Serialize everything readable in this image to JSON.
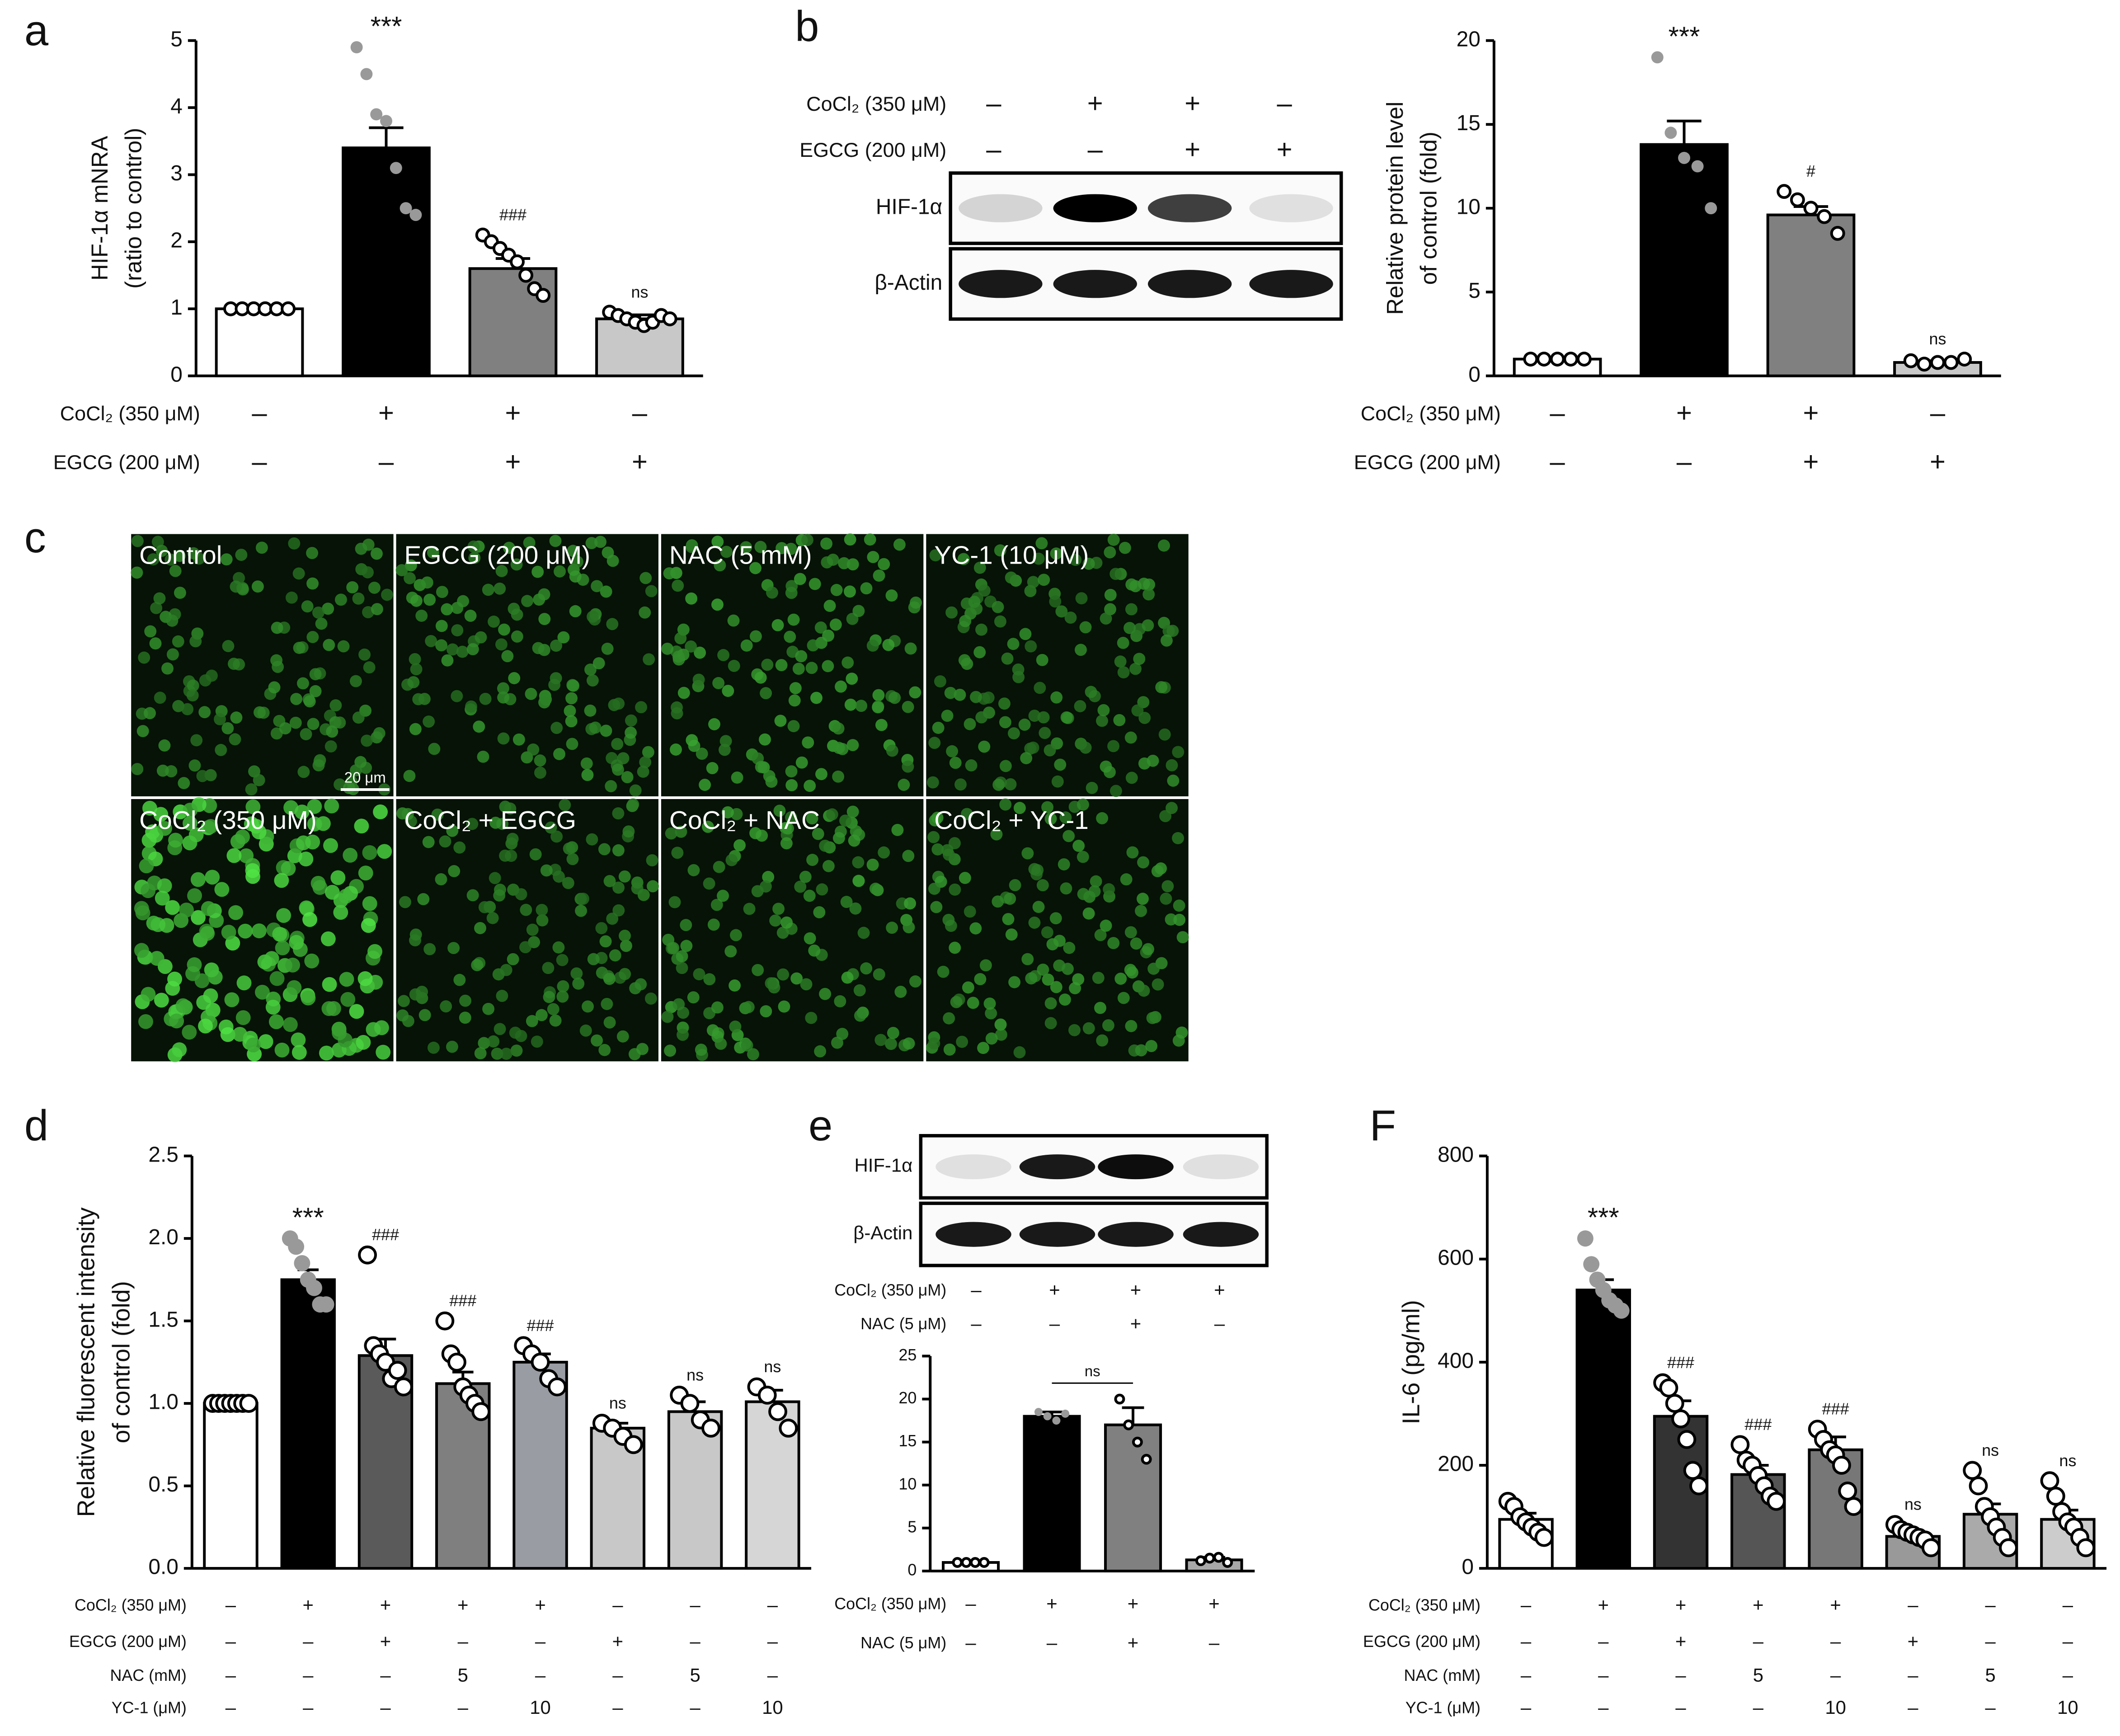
{
  "chart_data": [
    {
      "type": "bar",
      "ylabel": [
        "HIF-1α mNRA",
        "(ratio to control)"
      ],
      "ylim": [
        0,
        5
      ],
      "yticks": [
        0,
        1,
        2,
        3,
        4,
        5
      ],
      "values": [
        1.0,
        3.4,
        1.6,
        0.85
      ],
      "errors": [
        0,
        0.3,
        0.15,
        0.06
      ],
      "colors": [
        "#ffffff",
        "#000000",
        "#808080",
        "#c8c8c8"
      ],
      "point_fills": [
        "none",
        "#999999",
        "none",
        "none"
      ],
      "points": [
        [
          1,
          1,
          1,
          1,
          1,
          1
        ],
        [
          4.9,
          4.5,
          3.9,
          3.8,
          3.1,
          2.5,
          2.4
        ],
        [
          2.1,
          2.0,
          1.9,
          1.8,
          1.7,
          1.5,
          1.3,
          1.2
        ],
        [
          0.95,
          0.9,
          0.85,
          0.8,
          0.75,
          0.8,
          0.9,
          0.85
        ]
      ],
      "annotations": [
        null,
        "***",
        "###",
        "ns"
      ],
      "treatments": [
        {
          "label": "CoCl₂ (350 μM)",
          "values": [
            "–",
            "+",
            "+",
            "–"
          ]
        },
        {
          "label": "EGCG (200 μM)",
          "values": [
            "–",
            "–",
            "+",
            "+"
          ]
        }
      ]
    },
    {
      "type": "bar",
      "ylabel": [
        "Relative protein level",
        "of control (fold)"
      ],
      "ylim": [
        0,
        20
      ],
      "yticks": [
        0,
        5,
        10,
        15,
        20
      ],
      "values": [
        1,
        13.8,
        9.6,
        0.8
      ],
      "errors": [
        0.1,
        1.4,
        0.5,
        0.1
      ],
      "colors": [
        "#ffffff",
        "#000000",
        "#808080",
        "#c8c8c8"
      ],
      "point_fills": [
        "none",
        "#999999",
        "none",
        "none"
      ],
      "points": [
        [
          1,
          1,
          1,
          1,
          1
        ],
        [
          19,
          14.5,
          13,
          12.5,
          10
        ],
        [
          11,
          10.5,
          10,
          9.5,
          8.5
        ],
        [
          0.9,
          0.7,
          0.8,
          0.8,
          1.0
        ]
      ],
      "annotations": [
        null,
        "***",
        "#",
        "ns"
      ],
      "treatments": [
        {
          "label": "CoCl₂ (350 μM)",
          "values": [
            "–",
            "+",
            "+",
            "–"
          ]
        },
        {
          "label": "EGCG (200 μM)",
          "values": [
            "–",
            "–",
            "+",
            "+"
          ]
        }
      ]
    },
    {
      "type": "bar",
      "ylabel": [
        "Relative fluorescent  intensity",
        "of control (fold)"
      ],
      "ylim": [
        0,
        2.5
      ],
      "yticks": [
        {
          "value": 0,
          "label": "0.0"
        },
        0.5,
        {
          "value": 1,
          "label": "1.0"
        },
        1.5,
        {
          "value": 2,
          "label": "2.0"
        },
        2.5
      ],
      "values": [
        1.0,
        1.75,
        1.29,
        1.12,
        1.25,
        0.85,
        0.95,
        1.01
      ],
      "errors": [
        0.01,
        0.06,
        0.1,
        0.07,
        0.05,
        0.03,
        0.06,
        0.07
      ],
      "colors": [
        "#ffffff",
        "#000000",
        "#5a5a5a",
        "#7f7f7f",
        "#9a9ca3",
        "#c8c8c8",
        "#c8c8c8",
        "#d6d6d6"
      ],
      "point_fills": [
        "none",
        "#999999",
        "none",
        "none",
        "none",
        "none",
        "none",
        "none"
      ],
      "points": [
        [
          1,
          1,
          1,
          1,
          1,
          1,
          1
        ],
        [
          2.0,
          1.95,
          1.85,
          1.75,
          1.7,
          1.6,
          1.6
        ],
        [
          1.9,
          1.35,
          1.3,
          1.25,
          1.15,
          1.2,
          1.1
        ],
        [
          1.5,
          1.3,
          1.25,
          1.1,
          1.05,
          1.0,
          0.95
        ],
        [
          1.35,
          1.3,
          1.25,
          1.15,
          1.1
        ],
        [
          0.88,
          0.85,
          0.8,
          0.75
        ],
        [
          1.05,
          1.0,
          0.9,
          0.85
        ],
        [
          1.1,
          1.05,
          0.95,
          0.85
        ]
      ],
      "annotations": [
        null,
        "***",
        "###",
        "###",
        "###",
        "ns",
        "ns",
        "ns"
      ],
      "treatments": [
        {
          "label": "CoCl₂ (350 μM)",
          "values": [
            "–",
            "+",
            "+",
            "+",
            "+",
            "–",
            "–",
            "–"
          ]
        },
        {
          "label": "EGCG (200 μM)",
          "values": [
            "–",
            "–",
            "+",
            "–",
            "–",
            "+",
            "–",
            "–"
          ]
        },
        {
          "label": "NAC (mM)",
          "values": [
            "–",
            "–",
            "–",
            "5",
            "–",
            "–",
            "5",
            "–"
          ]
        },
        {
          "label": "YC-1 (μM)",
          "values": [
            "–",
            "–",
            "–",
            "–",
            "10",
            "–",
            "–",
            "10"
          ]
        }
      ]
    },
    {
      "type": "bar",
      "ylim": [
        0,
        25
      ],
      "yticks": [
        0,
        5,
        10,
        15,
        20,
        25
      ],
      "values": [
        1,
        18,
        17,
        1.3
      ],
      "errors": [
        0,
        0.5,
        2,
        0.3
      ],
      "colors": [
        "#ffffff",
        "#000000",
        "#808080",
        "#a8a8a8"
      ],
      "point_fills": [
        "none",
        "#999999",
        "none",
        "none"
      ],
      "points": [
        [
          1,
          1,
          1,
          1
        ],
        [
          18.5,
          18,
          17.5,
          18.3
        ],
        [
          20,
          17,
          15,
          13
        ],
        [
          1.2,
          1.5,
          1.6,
          1.0
        ]
      ],
      "annotations": [
        null,
        null,
        null,
        null
      ],
      "comparison_label": "ns",
      "treatments": [
        {
          "label": "CoCl₂ (350 μM)",
          "values": [
            "–",
            "+",
            "+",
            "+"
          ]
        },
        {
          "label": "NAC (5 μM)",
          "values": [
            "–",
            "–",
            "+",
            "–"
          ]
        }
      ]
    },
    {
      "type": "bar",
      "ylabel": [
        "IL-6 (pg/ml)"
      ],
      "ylim": [
        0,
        800
      ],
      "yticks": [
        0,
        200,
        400,
        600,
        800
      ],
      "values": [
        95,
        540,
        295,
        182,
        230,
        62,
        105,
        95
      ],
      "errors": [
        12,
        20,
        30,
        18,
        25,
        8,
        20,
        18
      ],
      "colors": [
        "#ffffff",
        "#000000",
        "#333333",
        "#555555",
        "#777777",
        "#999999",
        "#aaaaaa",
        "#cccccc"
      ],
      "point_fills": [
        "none",
        "#999999",
        "none",
        "none",
        "none",
        "none",
        "none",
        "none"
      ],
      "points": [
        [
          130,
          120,
          100,
          90,
          80,
          70,
          60
        ],
        [
          640,
          590,
          560,
          540,
          520,
          510,
          500
        ],
        [
          360,
          350,
          320,
          290,
          250,
          190,
          160
        ],
        [
          240,
          210,
          200,
          180,
          160,
          140,
          130
        ],
        [
          270,
          250,
          230,
          220,
          200,
          150,
          120
        ],
        [
          85,
          75,
          70,
          65,
          60,
          55,
          40
        ],
        [
          190,
          160,
          120,
          100,
          80,
          60,
          40
        ],
        [
          170,
          140,
          110,
          90,
          80,
          60,
          40
        ]
      ],
      "annotations": [
        null,
        "***",
        "###",
        "###",
        "###",
        "ns",
        "ns",
        "ns"
      ],
      "treatments": [
        {
          "label": "CoCl₂ (350 μM)",
          "values": [
            "–",
            "+",
            "+",
            "+",
            "+",
            "–",
            "–",
            "–"
          ]
        },
        {
          "label": "EGCG (200 μM)",
          "values": [
            "–",
            "–",
            "+",
            "–",
            "–",
            "+",
            "–",
            "–"
          ]
        },
        {
          "label": "NAC (mM)",
          "values": [
            "–",
            "–",
            "–",
            "5",
            "–",
            "–",
            "5",
            "–"
          ]
        },
        {
          "label": "YC-1 (μM)",
          "values": [
            "–",
            "–",
            "–",
            "–",
            "10",
            "–",
            "–",
            "10"
          ]
        }
      ]
    }
  ],
  "panel_labels": [
    "a",
    "b",
    "c",
    "d",
    "e",
    "F"
  ],
  "blots": [
    {
      "conditions": [
        {
          "label": "CoCl₂ (350 μM)",
          "values": [
            "–",
            "+",
            "+",
            "–"
          ]
        },
        {
          "label": "EGCG (200 μM)",
          "values": [
            "–",
            "–",
            "+",
            "+"
          ]
        }
      ],
      "bands": [
        "HIF-1α",
        "β-Actin"
      ]
    },
    {
      "conditions": [
        {
          "label": "CoCl₂ (350 μM)",
          "values": [
            "–",
            "+",
            "+",
            "+"
          ]
        },
        {
          "label": "NAC (5 μM)",
          "values": [
            "–",
            "–",
            "+",
            "–"
          ]
        }
      ],
      "bands": [
        "HIF-1α",
        "β-Actin"
      ]
    }
  ],
  "images": {
    "labels": [
      "Control",
      "EGCG (200 μM)",
      "NAC (5 mM)",
      "YC-1 (10 μM)",
      "CoCl₂ (350 μM)",
      "CoCl₂ + EGCG",
      "CoCl₂ + NAC",
      "CoCl₂ + YC-1"
    ],
    "scale_bar": "20 μm"
  }
}
